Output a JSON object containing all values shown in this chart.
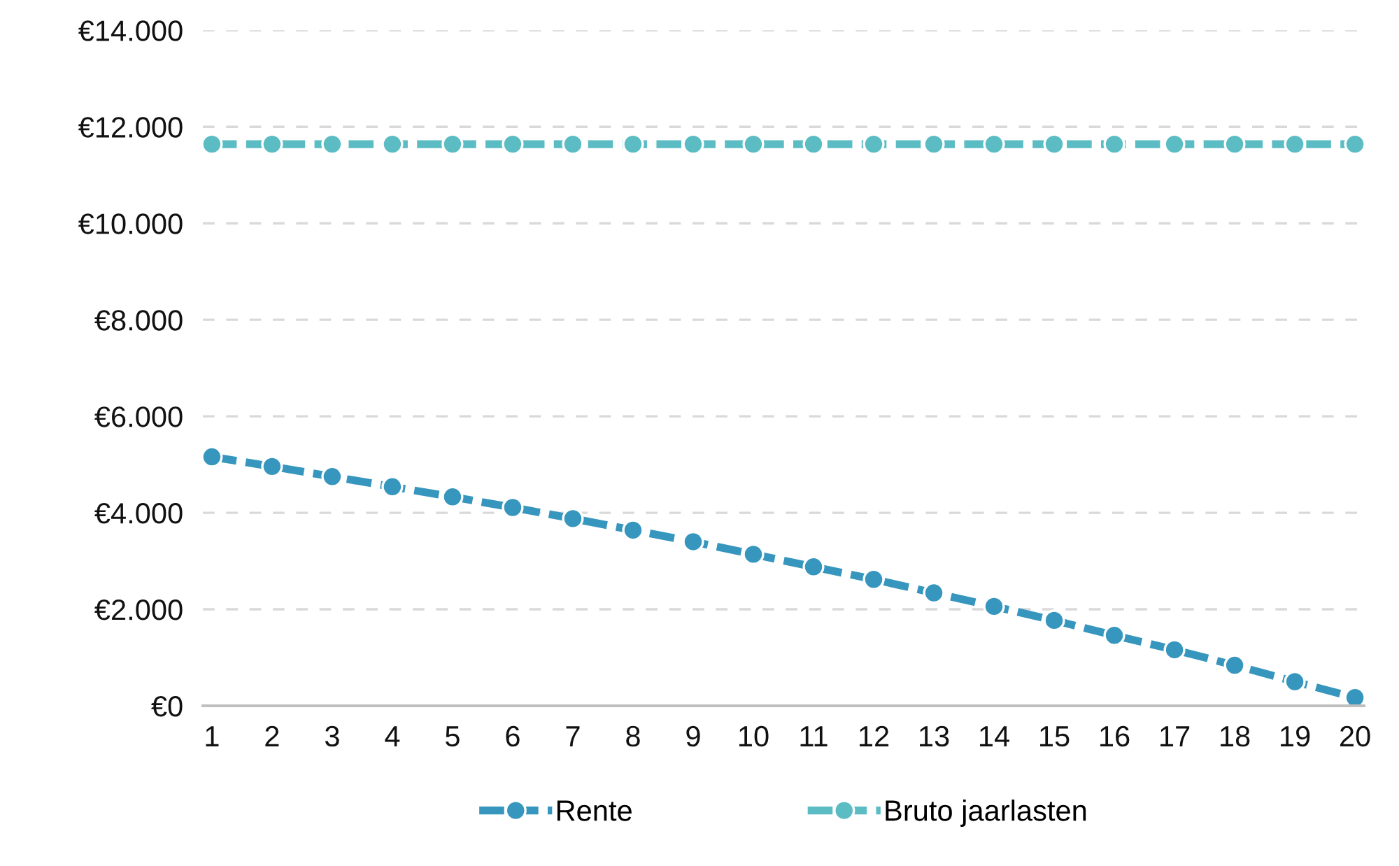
{
  "chart_data": {
    "type": "line",
    "categories": [
      "1",
      "2",
      "3",
      "4",
      "5",
      "6",
      "7",
      "8",
      "9",
      "10",
      "11",
      "12",
      "13",
      "14",
      "15",
      "16",
      "17",
      "18",
      "19",
      "20"
    ],
    "series": [
      {
        "name": "Rente",
        "color": "#3796bd",
        "values": [
          5160,
          4960,
          4750,
          4540,
          4330,
          4110,
          3880,
          3640,
          3400,
          3140,
          2880,
          2620,
          2340,
          2060,
          1770,
          1460,
          1160,
          840,
          500,
          170
        ]
      },
      {
        "name": "Bruto jaarlasten",
        "color": "#5bbcc4",
        "values": [
          11640,
          11640,
          11640,
          11640,
          11640,
          11640,
          11640,
          11640,
          11640,
          11640,
          11640,
          11640,
          11640,
          11640,
          11640,
          11640,
          11640,
          11640,
          11640,
          11640
        ]
      }
    ],
    "ylim": [
      0,
      14000
    ],
    "yticks": [
      {
        "value": 0,
        "label": "€0"
      },
      {
        "value": 2000,
        "label": "€2.000"
      },
      {
        "value": 4000,
        "label": "€4.000"
      },
      {
        "value": 6000,
        "label": "€6.000"
      },
      {
        "value": 8000,
        "label": "€8.000"
      },
      {
        "value": 10000,
        "label": "€10.000"
      },
      {
        "value": 12000,
        "label": "€12.000"
      },
      {
        "value": 14000,
        "label": "€14.000"
      }
    ],
    "grid": "y",
    "legend": "bottom",
    "marker": "circle",
    "line_style": "dashed"
  }
}
